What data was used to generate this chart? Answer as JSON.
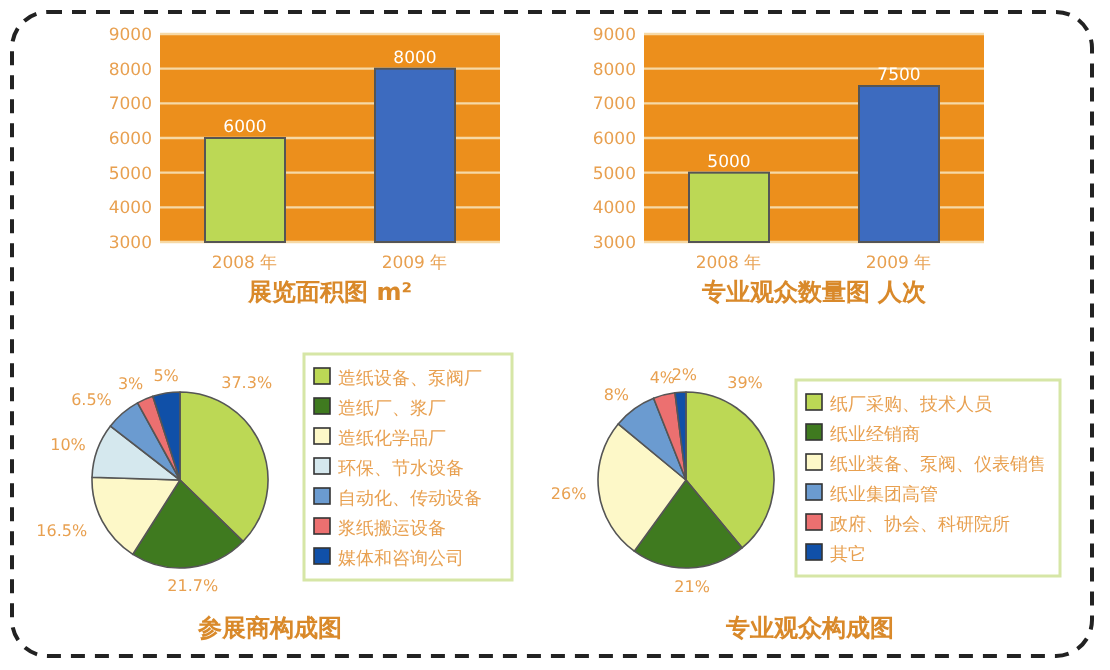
{
  "chart_data": [
    {
      "type": "bar",
      "title": "展览面积图 m²",
      "categories": [
        "2008 年",
        "2009 年"
      ],
      "values": [
        6000,
        8000
      ],
      "colors": [
        "#bcd855",
        "#3d6bbf"
      ],
      "ylim": [
        3000,
        9000
      ],
      "yticks": [
        3000,
        4000,
        5000,
        6000,
        7000,
        8000,
        9000
      ],
      "grid": "y",
      "data_labels": true
    },
    {
      "type": "bar",
      "title": "专业观众数量图 人次",
      "categories": [
        "2008 年",
        "2009 年"
      ],
      "values": [
        5000,
        7500
      ],
      "colors": [
        "#bcd855",
        "#3d6bbf"
      ],
      "ylim": [
        3000,
        9000
      ],
      "yticks": [
        3000,
        4000,
        5000,
        6000,
        7000,
        8000,
        9000
      ],
      "grid": "y",
      "data_labels": true
    },
    {
      "type": "pie",
      "title": "参展商构成图",
      "categories": [
        "造纸设备、泵阀厂",
        "造纸厂、浆厂",
        "造纸化学品厂",
        "环保、节水设备",
        "自动化、传动设备",
        "浆纸搬运设备",
        "媒体和咨询公司"
      ],
      "values": [
        37.3,
        21.7,
        16.5,
        10,
        6.5,
        3,
        5
      ],
      "value_labels": [
        "37.3%",
        "21.7%",
        "16.5%",
        "10%",
        "6.5%",
        "3%",
        "5%"
      ],
      "colors": [
        "#bcd855",
        "#3f7a1f",
        "#fdf8c8",
        "#d5e8ee",
        "#6b9bd0",
        "#ec7070",
        "#1050a8"
      ],
      "legend": "right"
    },
    {
      "type": "pie",
      "title": "专业观众构成图",
      "categories": [
        "纸厂采购、技术人员",
        "纸业经销商",
        "纸业装备、泵阀、仪表销售",
        "纸业集团高管",
        "政府、协会、科研院所",
        "其它"
      ],
      "values": [
        39,
        21,
        26,
        8,
        4,
        2
      ],
      "value_labels": [
        "39%",
        "21%",
        "26%",
        "8%",
        "4%",
        "2%"
      ],
      "colors": [
        "#bcd855",
        "#3f7a1f",
        "#fdf8c8",
        "#6b9bd0",
        "#ec7070",
        "#1050a8"
      ],
      "legend": "right"
    }
  ]
}
